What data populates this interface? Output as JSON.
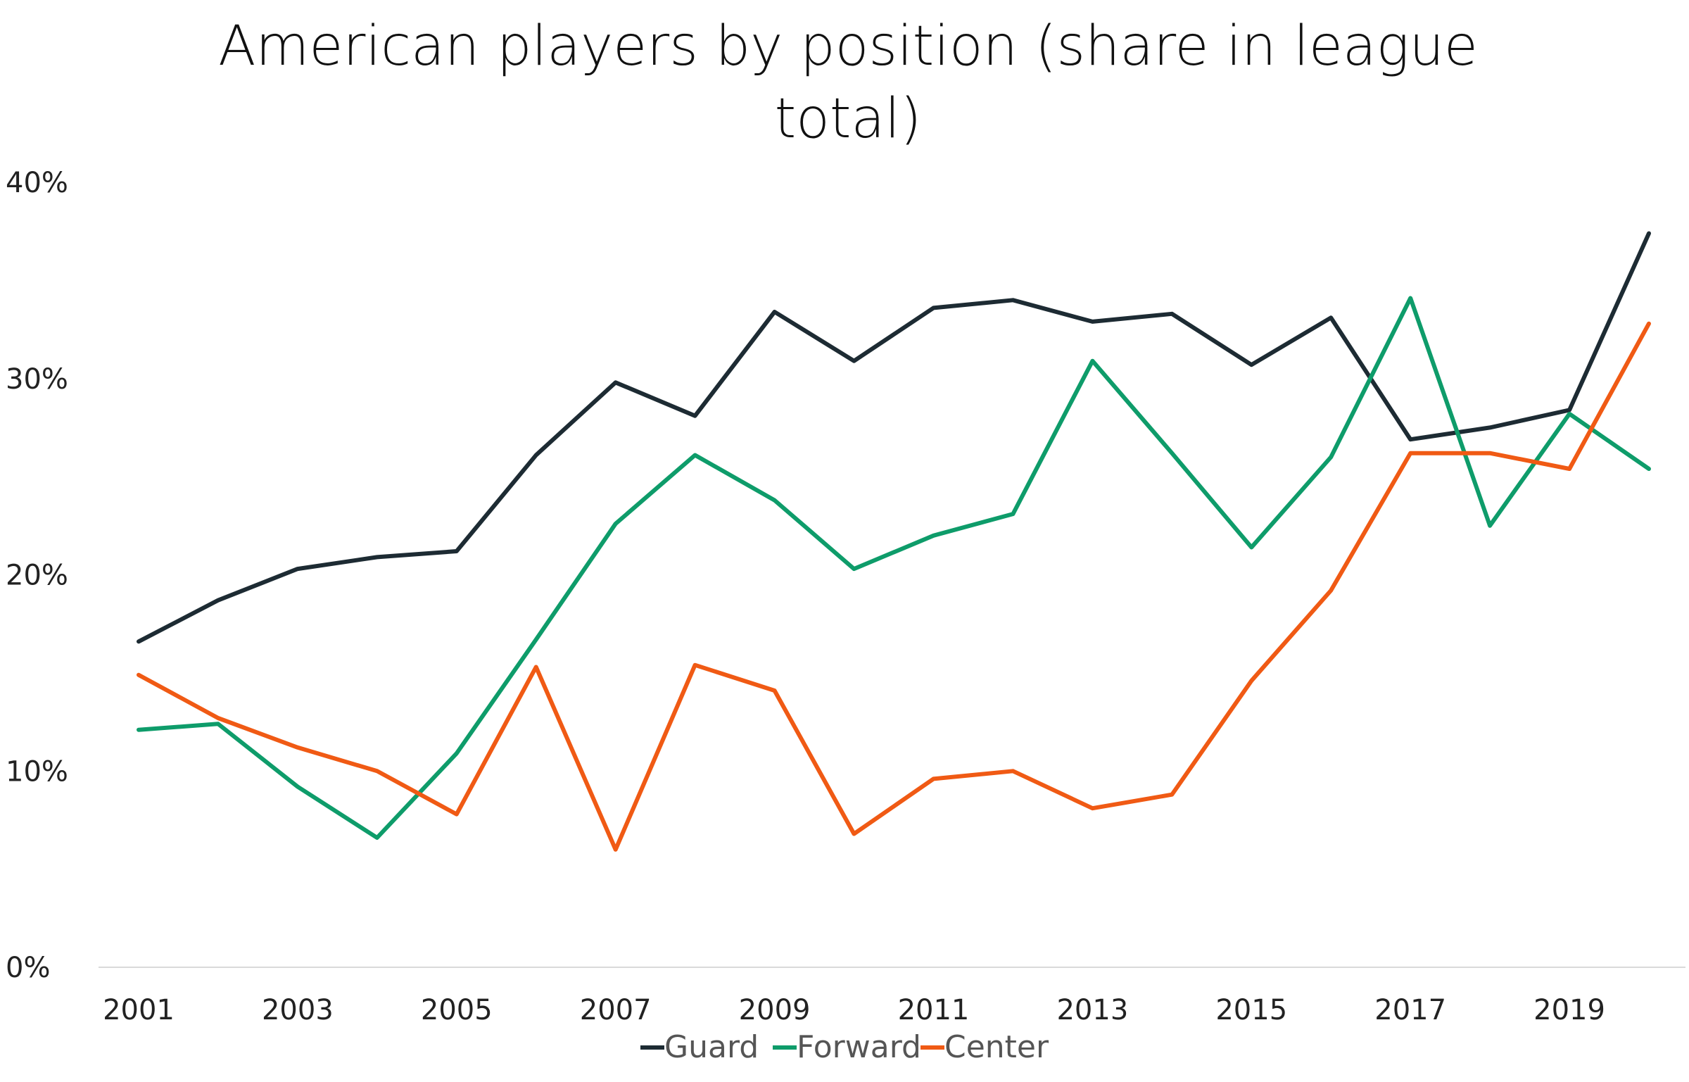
{
  "chart_data": {
    "type": "line",
    "title_lines": [
      "American players by position (share in league",
      "total)"
    ],
    "xlabel": "",
    "ylabel": "",
    "x": [
      2001,
      2002,
      2003,
      2004,
      2005,
      2006,
      2007,
      2008,
      2009,
      2010,
      2011,
      2012,
      2013,
      2014,
      2015,
      2016,
      2017,
      2018,
      2019,
      2020
    ],
    "x_tick_labels": [
      "2001",
      "2003",
      "2005",
      "2007",
      "2009",
      "2011",
      "2013",
      "2015",
      "2017",
      "2019"
    ],
    "y_tick_labels": [
      "0%",
      "10%",
      "20%",
      "30%",
      "40%"
    ],
    "ylim": [
      0,
      40
    ],
    "grid": false,
    "legend_position": "bottom",
    "series": [
      {
        "name": "Guard",
        "color": "#1d2b33",
        "values": [
          16.6,
          18.7,
          20.3,
          20.9,
          21.2,
          26.1,
          29.8,
          28.1,
          33.4,
          30.9,
          33.6,
          34.0,
          32.9,
          33.3,
          30.7,
          33.1,
          26.9,
          27.5,
          28.4,
          37.4
        ]
      },
      {
        "name": "Forward",
        "color": "#0e9c6a",
        "values": [
          12.1,
          12.4,
          9.2,
          6.6,
          10.9,
          16.7,
          22.6,
          26.1,
          23.8,
          20.3,
          22.0,
          23.1,
          30.9,
          26.2,
          21.4,
          26.0,
          34.1,
          22.5,
          28.2,
          25.4
        ]
      },
      {
        "name": "Center",
        "color": "#f05a14",
        "values": [
          14.9,
          12.7,
          11.2,
          10.0,
          7.8,
          15.3,
          6.0,
          15.4,
          14.1,
          6.8,
          9.6,
          10.0,
          8.1,
          8.8,
          14.6,
          19.2,
          26.2,
          26.2,
          25.4,
          32.8
        ]
      }
    ]
  }
}
